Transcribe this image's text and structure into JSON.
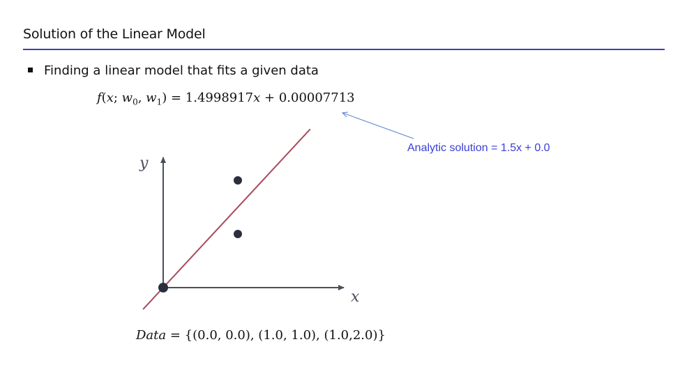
{
  "slide": {
    "title": "Solution of the Linear Model",
    "bullet": "Finding a linear model that fits a given data",
    "formula": {
      "func": "f",
      "args_open": "(",
      "x": "x",
      "sep1": "; ",
      "w0": "w",
      "w0_sub": "0",
      "sep2": ", ",
      "w1": "w",
      "w1_sub": "1",
      "args_close": ")",
      "rhs": " = 1.4998917",
      "rhs_x": "x",
      "rhs_rest": " + 0.00007713"
    },
    "annotation": "Analytic solution = 1.5x + 0.0",
    "data_label": "Data",
    "data_value": " = {(0.0, 0.0), (1.0, 1.0), (1.0,2.0)}"
  },
  "chart_data": {
    "type": "scatter",
    "x_axis_label": "x",
    "y_axis_label": "y",
    "points": [
      {
        "x": 0.0,
        "y": 0.0
      },
      {
        "x": 1.0,
        "y": 1.0
      },
      {
        "x": 1.0,
        "y": 2.0
      }
    ],
    "fit_line": {
      "slope": 1.4998917,
      "intercept": 7.713e-05
    },
    "colors": {
      "axes": "#4a4f5c",
      "points": "#2b2f3d",
      "fit_line": "#a84a5a",
      "annotation": "#3a3fd6",
      "arrow": "#5a84c8",
      "title_rule": "#3b3fb8"
    }
  }
}
